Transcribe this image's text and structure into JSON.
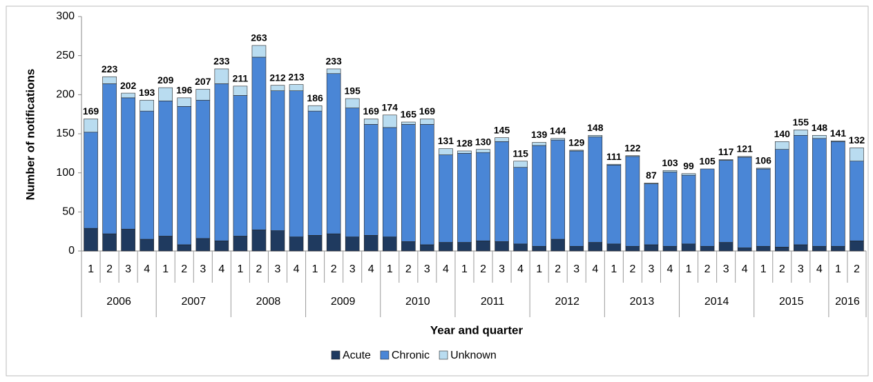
{
  "chart_data": {
    "type": "stacked_bar",
    "x_label": "Year and quarter",
    "y_label": "Number of notifications",
    "categories": [
      "1",
      "2",
      "3",
      "4",
      "1",
      "2",
      "3",
      "4",
      "1",
      "2",
      "3",
      "4",
      "1",
      "2",
      "3",
      "4",
      "1",
      "2",
      "3",
      "4",
      "1",
      "2",
      "3",
      "4",
      "1",
      "2",
      "3",
      "4",
      "1",
      "2",
      "3",
      "4",
      "1",
      "2",
      "3",
      "4",
      "1",
      "2",
      "3",
      "4",
      "1",
      "2"
    ],
    "category_groups": [
      "2006",
      "2007",
      "2008",
      "2009",
      "2010",
      "2011",
      "2012",
      "2013",
      "2014",
      "2015",
      "2016"
    ],
    "series": [
      {
        "name": "Acute",
        "color": "#1f3a5f",
        "values": [
          29,
          22,
          28,
          15,
          19,
          8,
          16,
          13,
          19,
          27,
          26,
          18,
          20,
          22,
          18,
          20,
          18,
          12,
          8,
          11,
          11,
          13,
          12,
          9,
          6,
          15,
          6,
          11,
          9,
          6,
          8,
          6,
          9,
          6,
          11,
          4,
          6,
          5,
          8,
          6,
          6,
          13
        ]
      },
      {
        "name": "Chronic",
        "color": "#4a86d6",
        "values": [
          123,
          192,
          168,
          164,
          173,
          177,
          177,
          201,
          180,
          221,
          179,
          187,
          159,
          205,
          165,
          142,
          140,
          150,
          154,
          112,
          114,
          113,
          128,
          98,
          129,
          127,
          122,
          135,
          101,
          115,
          78,
          95,
          88,
          99,
          105,
          116,
          99,
          125,
          140,
          138,
          134,
          102
        ]
      },
      {
        "name": "Unknown",
        "color": "#b9dcf0",
        "values": [
          17,
          9,
          6,
          14,
          17,
          11,
          14,
          19,
          12,
          15,
          7,
          8,
          7,
          6,
          12,
          7,
          16,
          3,
          7,
          8,
          3,
          4,
          5,
          8,
          4,
          2,
          1,
          2,
          1,
          1,
          1,
          2,
          2,
          0,
          1,
          1,
          1,
          10,
          7,
          4,
          1,
          17
        ]
      }
    ],
    "totals": [
      169,
      223,
      202,
      193,
      209,
      196,
      207,
      233,
      211,
      263,
      212,
      213,
      186,
      233,
      195,
      169,
      174,
      165,
      169,
      131,
      128,
      130,
      145,
      115,
      139,
      144,
      129,
      148,
      111,
      122,
      87,
      103,
      99,
      105,
      117,
      121,
      106,
      140,
      155,
      148,
      141,
      132
    ],
    "ylim": [
      0,
      300
    ],
    "yticks": [
      0,
      50,
      100,
      150,
      200,
      250,
      300
    ],
    "grid": false,
    "legend": "bottom"
  }
}
